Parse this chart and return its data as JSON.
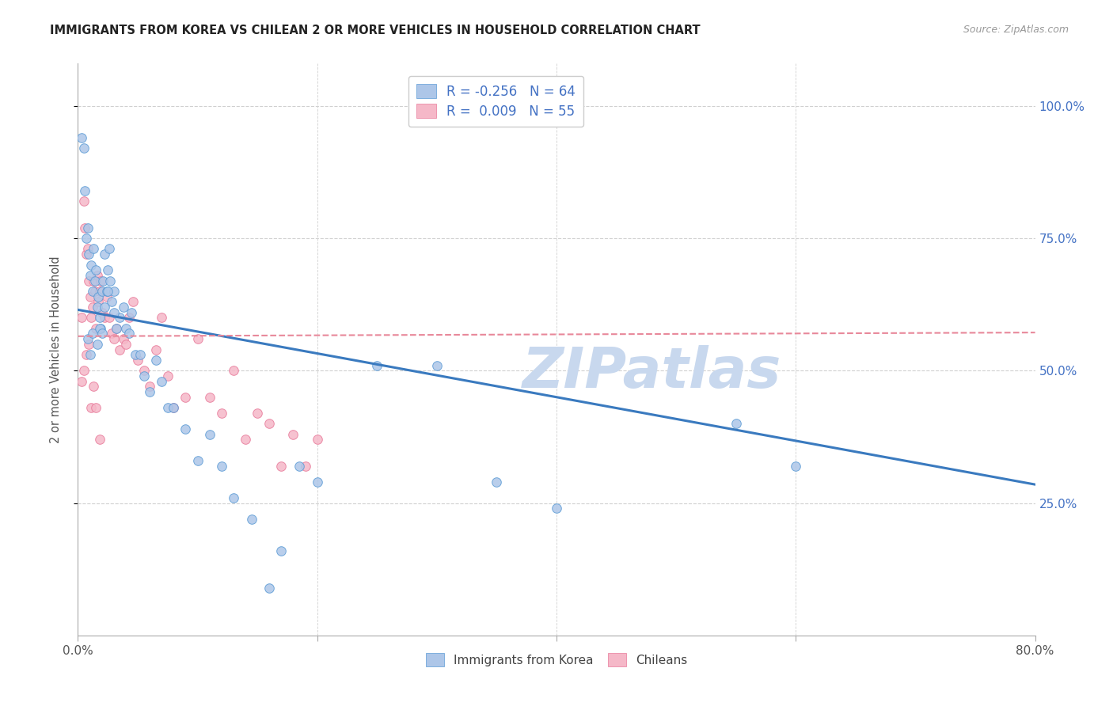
{
  "title": "IMMIGRANTS FROM KOREA VS CHILEAN 2 OR MORE VEHICLES IN HOUSEHOLD CORRELATION CHART",
  "source": "Source: ZipAtlas.com",
  "ylabel": "2 or more Vehicles in Household",
  "ytick_vals": [
    0.25,
    0.5,
    0.75,
    1.0
  ],
  "ytick_labels": [
    "25.0%",
    "50.0%",
    "75.0%",
    "100.0%"
  ],
  "xtick_vals": [
    0.0,
    0.2,
    0.4,
    0.6,
    0.8
  ],
  "xtick_labels": [
    "0.0%",
    "",
    "",
    "",
    "80.0%"
  ],
  "legend_line1": "R = -0.256   N = 64",
  "legend_line2": "R =  0.009   N = 55",
  "korea_color": "#adc6e8",
  "chile_color": "#f5b8c8",
  "korea_edge_color": "#5b9bd5",
  "chile_edge_color": "#e87a9a",
  "korea_line_color": "#3a7abf",
  "chile_line_color": "#e8889a",
  "text_color": "#4472c4",
  "axis_label_color": "#555555",
  "grid_color": "#d0d0d0",
  "background_color": "#ffffff",
  "xlim": [
    0.0,
    0.8
  ],
  "ylim": [
    0.0,
    1.08
  ],
  "korea_line_x0": 0.0,
  "korea_line_y0": 0.615,
  "korea_line_x1": 0.8,
  "korea_line_y1": 0.285,
  "chile_line_x0": 0.0,
  "chile_line_y0": 0.565,
  "chile_line_x1": 0.8,
  "chile_line_y1": 0.572,
  "korea_x": [
    0.003,
    0.005,
    0.006,
    0.007,
    0.008,
    0.009,
    0.01,
    0.011,
    0.012,
    0.013,
    0.014,
    0.015,
    0.016,
    0.017,
    0.018,
    0.019,
    0.02,
    0.021,
    0.022,
    0.024,
    0.025,
    0.026,
    0.027,
    0.028,
    0.03,
    0.032,
    0.035,
    0.038,
    0.04,
    0.043,
    0.045,
    0.048,
    0.052,
    0.055,
    0.06,
    0.065,
    0.07,
    0.075,
    0.08,
    0.09,
    0.1,
    0.11,
    0.12,
    0.13,
    0.145,
    0.16,
    0.17,
    0.185,
    0.2,
    0.25,
    0.3,
    0.35,
    0.4,
    0.55,
    0.6,
    0.008,
    0.01,
    0.012,
    0.016,
    0.018,
    0.02,
    0.022,
    0.025,
    0.03
  ],
  "korea_y": [
    0.94,
    0.92,
    0.84,
    0.75,
    0.77,
    0.72,
    0.68,
    0.7,
    0.65,
    0.73,
    0.67,
    0.69,
    0.62,
    0.64,
    0.6,
    0.58,
    0.65,
    0.67,
    0.72,
    0.65,
    0.69,
    0.73,
    0.67,
    0.63,
    0.65,
    0.58,
    0.6,
    0.62,
    0.58,
    0.57,
    0.61,
    0.53,
    0.53,
    0.49,
    0.46,
    0.52,
    0.48,
    0.43,
    0.43,
    0.39,
    0.33,
    0.38,
    0.32,
    0.26,
    0.22,
    0.09,
    0.16,
    0.32,
    0.29,
    0.51,
    0.51,
    0.29,
    0.24,
    0.4,
    0.32,
    0.56,
    0.53,
    0.57,
    0.55,
    0.58,
    0.57,
    0.62,
    0.65,
    0.61
  ],
  "chile_x": [
    0.003,
    0.005,
    0.006,
    0.007,
    0.008,
    0.009,
    0.01,
    0.011,
    0.012,
    0.013,
    0.014,
    0.015,
    0.016,
    0.017,
    0.018,
    0.019,
    0.02,
    0.022,
    0.024,
    0.026,
    0.028,
    0.03,
    0.032,
    0.035,
    0.038,
    0.04,
    0.043,
    0.046,
    0.05,
    0.055,
    0.06,
    0.065,
    0.07,
    0.075,
    0.08,
    0.09,
    0.1,
    0.11,
    0.12,
    0.13,
    0.14,
    0.15,
    0.16,
    0.17,
    0.18,
    0.19,
    0.2,
    0.003,
    0.005,
    0.007,
    0.009,
    0.011,
    0.013,
    0.015,
    0.018
  ],
  "chile_y": [
    0.6,
    0.82,
    0.77,
    0.72,
    0.73,
    0.67,
    0.64,
    0.6,
    0.62,
    0.67,
    0.65,
    0.58,
    0.68,
    0.63,
    0.65,
    0.67,
    0.61,
    0.6,
    0.64,
    0.6,
    0.57,
    0.56,
    0.58,
    0.54,
    0.56,
    0.55,
    0.6,
    0.63,
    0.52,
    0.5,
    0.47,
    0.54,
    0.6,
    0.49,
    0.43,
    0.45,
    0.56,
    0.45,
    0.42,
    0.5,
    0.37,
    0.42,
    0.4,
    0.32,
    0.38,
    0.32,
    0.37,
    0.48,
    0.5,
    0.53,
    0.55,
    0.43,
    0.47,
    0.43,
    0.37
  ],
  "watermark_text": "ZIPatlas",
  "watermark_color": "#c8d8ee",
  "scatter_size": 70
}
